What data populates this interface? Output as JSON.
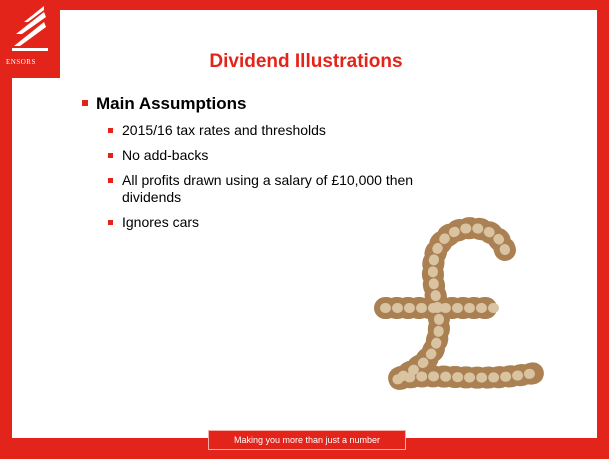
{
  "logo": "ENSORS",
  "title": "Dividend Illustrations",
  "heading": "Main Assumptions",
  "items": [
    "2015/16 tax rates and thresholds",
    "No add-backs",
    "All profits drawn using a salary of £10,000 then dividends",
    "Ignores cars"
  ],
  "tagline": "Making you more than just a number"
}
